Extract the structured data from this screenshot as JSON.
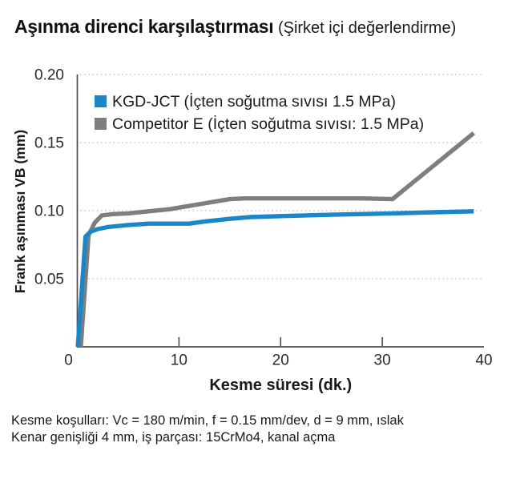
{
  "title": {
    "main": "Aşınma direnci karşılaştırması",
    "sub": " (Şirket içi değerlendirme)"
  },
  "footer": {
    "line1": "Kesme koşulları: Vc = 180 m/min, f = 0.15 mm/dev, d = 9 mm, ıslak",
    "line2": "Kenar genişliği 4 mm, iş parçası: 15CrMo4, kanal açma"
  },
  "colors": {
    "series_blue": "#1b86c8",
    "series_gray": "#7e7e7e",
    "axis": "#4d4d4d",
    "grid": "#c9c9c9",
    "tick_text": "#2b2b2b",
    "text": "#1a1a1a",
    "background": "#ffffff"
  },
  "chart_data": {
    "type": "line",
    "title": "Aşınma direnci karşılaştırması (Şirket içi değerlendirme)",
    "xlabel": "Kesme süresi (dk.)",
    "ylabel": "Frank aşınması VB (mm)",
    "xlim": [
      0,
      40
    ],
    "ylim": [
      0,
      0.2
    ],
    "xticks": [
      0,
      10,
      20,
      30,
      40
    ],
    "xtick_labels": [
      "0",
      "10",
      "20",
      "30",
      "40"
    ],
    "yticks": [
      0.05,
      0.1,
      0.15,
      0.2
    ],
    "ytick_labels": [
      "0.05",
      "0.10",
      "0.15",
      "0.20"
    ],
    "grid": "horizontal-dotted",
    "legend_position": "top-left-inside",
    "series": [
      {
        "name": "Competitor E (İçten soğutma sıvısı: 1.5 MPa)",
        "key": "competitor-e",
        "color": "#7e7e7e",
        "legend_order": 2,
        "points": [
          [
            0.35,
            0
          ],
          [
            1.1,
            0.082
          ],
          [
            1.7,
            0.091
          ],
          [
            2.4,
            0.0965
          ],
          [
            3.5,
            0.0975
          ],
          [
            5,
            0.098
          ],
          [
            7,
            0.0995
          ],
          [
            9,
            0.101
          ],
          [
            11,
            0.1035
          ],
          [
            13,
            0.106
          ],
          [
            15,
            0.1085
          ],
          [
            16.5,
            0.109
          ],
          [
            20,
            0.109
          ],
          [
            25,
            0.109
          ],
          [
            28,
            0.109
          ],
          [
            31,
            0.1085
          ],
          [
            39,
            0.157
          ]
        ]
      },
      {
        "name": "KGD-JCT (İçten soğutma sıvısı 1.5 MPa)",
        "key": "kgd-jct",
        "color": "#1b86c8",
        "legend_order": 1,
        "points": [
          [
            0.05,
            0
          ],
          [
            0.8,
            0.081
          ],
          [
            1.3,
            0.0845
          ],
          [
            2,
            0.0865
          ],
          [
            3,
            0.088
          ],
          [
            5,
            0.0895
          ],
          [
            7,
            0.0905
          ],
          [
            9,
            0.0905
          ],
          [
            11,
            0.0905
          ],
          [
            12.5,
            0.092
          ],
          [
            15,
            0.094
          ],
          [
            17,
            0.0953
          ],
          [
            20,
            0.096
          ],
          [
            25,
            0.097
          ],
          [
            31,
            0.098
          ],
          [
            35,
            0.0988
          ],
          [
            39,
            0.0995
          ]
        ]
      }
    ]
  }
}
